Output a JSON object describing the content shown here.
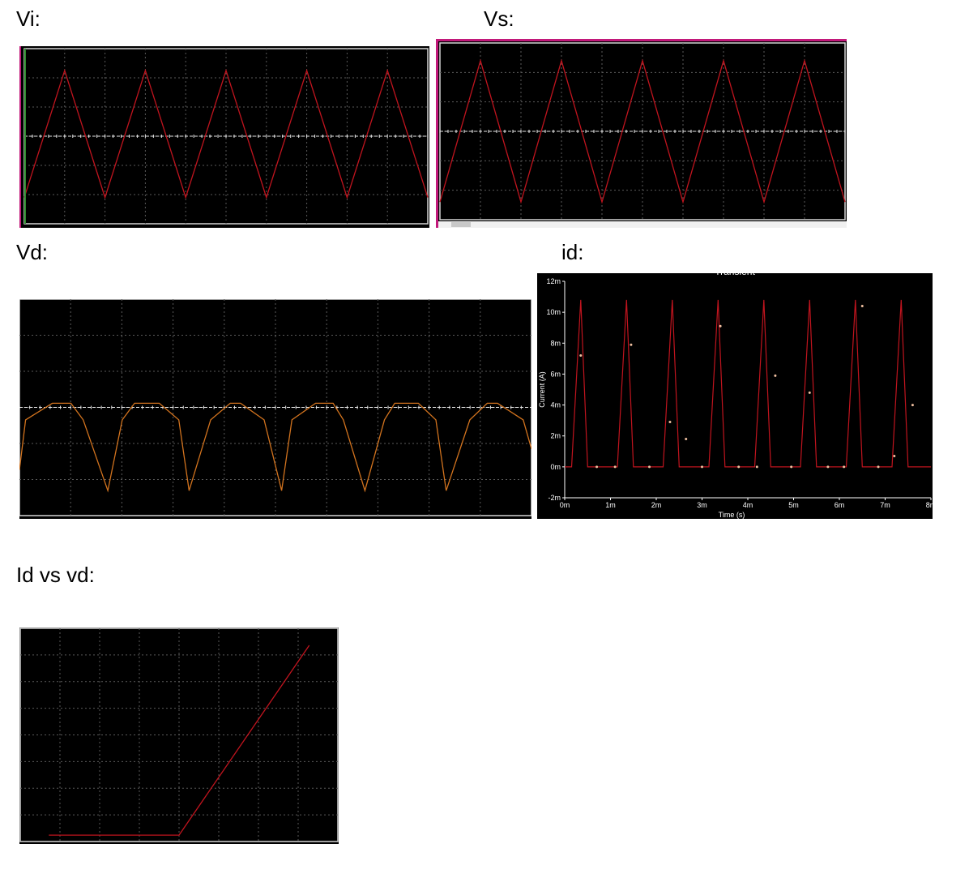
{
  "labels": {
    "vi": "Vi:",
    "vs": "Vs:",
    "vd": "Vd:",
    "id": "id:",
    "ivd": "Id vs vd:"
  },
  "colors": {
    "trace_red": "#c0141e",
    "trace_orange": "#d2731e",
    "grid": "#5a5a5a",
    "axis": "#e6e6e6",
    "frame": "#d4d4d4",
    "accent_pink": "#c2187a"
  },
  "chart_data": [
    {
      "id": "vi",
      "type": "line",
      "series": [
        {
          "x": [
            0,
            0.5,
            1,
            1.5,
            2,
            2.5,
            3,
            3.5,
            4,
            4.5,
            5
          ],
          "values": [
            -0.7,
            0.75,
            -0.7,
            0.75,
            -0.7,
            0.75,
            -0.7,
            0.75,
            -0.7,
            0.75,
            -0.7
          ]
        }
      ],
      "ylim": [
        -1,
        1
      ],
      "grid": true
    },
    {
      "id": "vs",
      "type": "line",
      "series": [
        {
          "x": [
            0,
            0.5,
            1,
            1.5,
            2,
            2.5,
            3,
            3.5,
            4,
            4.5,
            5
          ],
          "values": [
            -0.8,
            0.8,
            -0.8,
            0.8,
            -0.8,
            0.8,
            -0.8,
            0.8,
            -0.8,
            0.8,
            -0.8
          ]
        }
      ],
      "ylim": [
        -1,
        1
      ],
      "grid": true
    },
    {
      "id": "vd",
      "type": "line",
      "series": [
        {
          "x": [
            0,
            0.06,
            0.32,
            0.5,
            0.62,
            0.86,
            1.0,
            1.12,
            1.36,
            1.55,
            1.65,
            1.86,
            2.05,
            2.15,
            2.38,
            2.55,
            2.65,
            2.88,
            3.05,
            3.15,
            3.36,
            3.55,
            3.65,
            3.88,
            4.05,
            4.15,
            4.38,
            4.55,
            4.65,
            4.9,
            4.98
          ],
          "values": [
            -0.75,
            -0.15,
            0.05,
            0.05,
            -0.15,
            -1.0,
            -0.15,
            0.05,
            0.05,
            -0.15,
            -1.0,
            -0.15,
            0.05,
            0.05,
            -0.15,
            -1.0,
            -0.15,
            0.05,
            0.05,
            -0.15,
            -1.0,
            -0.15,
            0.05,
            0.05,
            -0.15,
            -1.0,
            -0.15,
            0.05,
            0.05,
            -0.15,
            -0.5
          ]
        }
      ],
      "ylim": [
        -1.3,
        1.3
      ],
      "grid": true
    },
    {
      "id": "id",
      "type": "line",
      "title": "Transient",
      "xlabel": "Time (s)",
      "ylabel": "Current (A)",
      "xticks": [
        "0m",
        "1m",
        "2m",
        "3m",
        "4m",
        "5m",
        "6m",
        "7m",
        "8m"
      ],
      "yticks": [
        "-2m",
        "0m",
        "2m",
        "4m",
        "6m",
        "8m",
        "10m",
        "12m"
      ],
      "xlim": [
        0,
        8
      ],
      "ylim": [
        -2,
        12
      ],
      "series": [
        {
          "x": [
            0,
            0.15,
            0.35,
            0.5,
            0.75,
            1.15,
            1.35,
            1.5,
            1.75,
            2.15,
            2.35,
            2.5,
            2.75,
            3.15,
            3.35,
            3.5,
            3.75,
            4.15,
            4.35,
            4.5,
            4.75,
            5.15,
            5.35,
            5.5,
            5.75,
            6.15,
            6.35,
            6.5,
            6.75,
            7.15,
            7.35,
            7.5,
            7.75,
            8.0
          ],
          "values": [
            0,
            0,
            10.8,
            0,
            0,
            0,
            10.8,
            0,
            0,
            0,
            10.8,
            0,
            0,
            0,
            10.8,
            0,
            0,
            0,
            10.8,
            0,
            0,
            0,
            10.8,
            0,
            0,
            0,
            10.8,
            0,
            0,
            0,
            10.8,
            0,
            0,
            0
          ]
        }
      ],
      "markers": [
        {
          "x": 0.35,
          "y": 7.2
        },
        {
          "x": 0.7,
          "y": 0
        },
        {
          "x": 1.1,
          "y": 0
        },
        {
          "x": 1.45,
          "y": 7.9
        },
        {
          "x": 1.85,
          "y": 0
        },
        {
          "x": 2.3,
          "y": 2.9
        },
        {
          "x": 2.65,
          "y": 1.8
        },
        {
          "x": 3.0,
          "y": 0
        },
        {
          "x": 3.4,
          "y": 9.1
        },
        {
          "x": 3.8,
          "y": 0
        },
        {
          "x": 4.2,
          "y": 0
        },
        {
          "x": 4.6,
          "y": 5.9
        },
        {
          "x": 4.95,
          "y": 0
        },
        {
          "x": 5.35,
          "y": 4.8
        },
        {
          "x": 5.75,
          "y": 0
        },
        {
          "x": 6.1,
          "y": 0
        },
        {
          "x": 6.5,
          "y": 10.4
        },
        {
          "x": 6.85,
          "y": 0
        },
        {
          "x": 7.2,
          "y": 0.7
        },
        {
          "x": 7.6,
          "y": 4.0
        }
      ]
    },
    {
      "id": "ivd",
      "type": "line",
      "series": [
        {
          "x": [
            0.09,
            0.5,
            0.91
          ],
          "values": [
            0.03,
            0.03,
            0.92
          ]
        }
      ],
      "xlim": [
        0,
        1
      ],
      "ylim": [
        0,
        1
      ],
      "grid": true
    }
  ]
}
